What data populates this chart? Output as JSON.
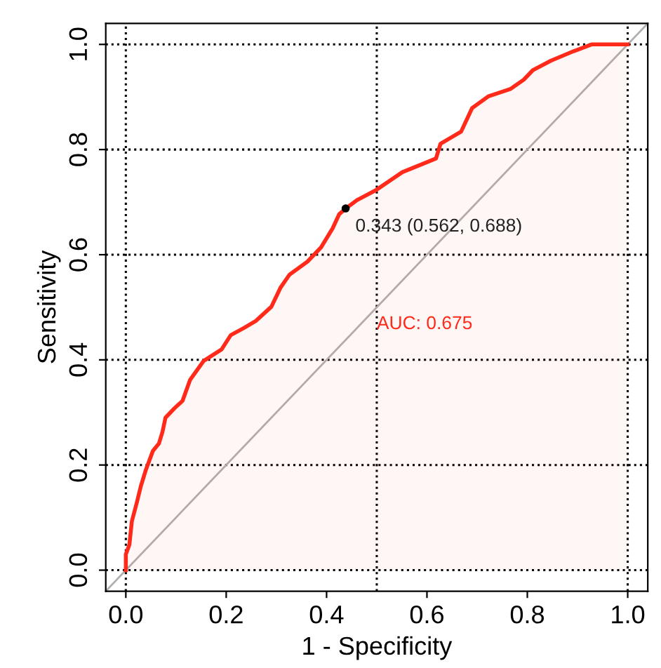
{
  "chart_data": {
    "type": "area",
    "xlabel": "1 - Specificity",
    "ylabel": "Sensitivity",
    "xlim": [
      -0.04,
      1.04
    ],
    "ylim": [
      -0.04,
      1.04
    ],
    "xticks": [
      {
        "value": 0,
        "label": "0.0"
      },
      {
        "value": 0.2,
        "label": "0.2"
      },
      {
        "value": 0.4,
        "label": "0.4"
      },
      {
        "value": 0.6,
        "label": "0.6"
      },
      {
        "value": 0.8,
        "label": "0.8"
      },
      {
        "value": 1,
        "label": "1.0"
      }
    ],
    "yticks": [
      {
        "value": 0,
        "label": "0.0"
      },
      {
        "value": 0.2,
        "label": "0.2"
      },
      {
        "value": 0.4,
        "label": "0.4"
      },
      {
        "value": 0.6,
        "label": "0.6"
      },
      {
        "value": 0.8,
        "label": "0.8"
      },
      {
        "value": 1,
        "label": "1.0"
      }
    ],
    "grid": "y",
    "line_style": "solid",
    "ref_lines": [
      {
        "axis": "x",
        "value": 0,
        "line_style": "dotted",
        "color": "#000000"
      },
      {
        "axis": "x",
        "value": 0.5,
        "line_style": "dotted",
        "color": "#000000"
      },
      {
        "axis": "x",
        "value": 1,
        "line_style": "dotted",
        "color": "#000000"
      }
    ],
    "series": [
      {
        "type": "line",
        "color": "#b0b0b0",
        "x": [
          -0.04,
          1.04
        ],
        "values": [
          -0.04,
          1.04
        ]
      },
      {
        "color": "#ff2a1a",
        "x": [
          0,
          0,
          0.007,
          0.012,
          0.022,
          0.03,
          0.04,
          0.054,
          0.066,
          0.073,
          0.079,
          0.097,
          0.113,
          0.128,
          0.155,
          0.191,
          0.209,
          0.236,
          0.259,
          0.29,
          0.308,
          0.326,
          0.362,
          0.389,
          0.412,
          0.425,
          0.437,
          0.461,
          0.497,
          0.551,
          0.618,
          0.627,
          0.668,
          0.69,
          0.722,
          0.766,
          0.793,
          0.811,
          0.847,
          0.892,
          0.928,
          1.0
        ],
        "values": [
          0,
          0.03,
          0.048,
          0.093,
          0.129,
          0.16,
          0.191,
          0.227,
          0.241,
          0.263,
          0.29,
          0.308,
          0.322,
          0.362,
          0.398,
          0.42,
          0.447,
          0.461,
          0.474,
          0.501,
          0.537,
          0.562,
          0.587,
          0.614,
          0.65,
          0.677,
          0.687,
          0.704,
          0.722,
          0.757,
          0.783,
          0.811,
          0.834,
          0.879,
          0.901,
          0.915,
          0.933,
          0.951,
          0.969,
          0.987,
          1.0,
          1.0
        ]
      },
      {
        "type": "scatter",
        "color": "#000000",
        "marker": "circle",
        "x": [
          0.438
        ],
        "values": [
          0.688
        ]
      }
    ],
    "annotations": [
      {
        "text": "0.343 (0.562, 0.688)",
        "x": 0.438,
        "y": 0.688
      },
      "AUC: 0.675"
    ]
  }
}
